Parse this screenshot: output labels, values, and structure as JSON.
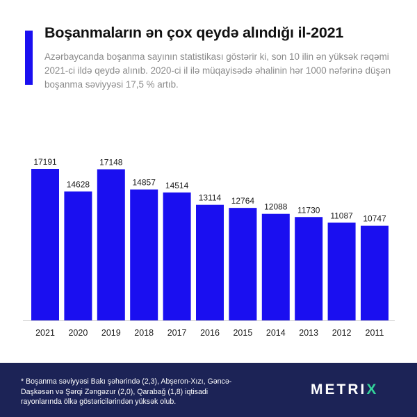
{
  "header": {
    "title": "Boşanmaların ən çox qeydə alındığı il-2021",
    "subtitle": "Azərbaycanda boşanma sayının statistikası göstərir ki, son 10 ilin ən yüksək rəqəmi 2021-ci ildə qeydə alınıb. 2020-ci il ilə müqayisədə əhalinin hər 1000 nəfərinə düşən boşanma səviyyəsi 17,5 % artıb."
  },
  "chart_data": {
    "type": "bar",
    "categories": [
      "2021",
      "2020",
      "2019",
      "2018",
      "2017",
      "2016",
      "2015",
      "2014",
      "2013",
      "2012",
      "2011"
    ],
    "values": [
      17191,
      14628,
      17148,
      14857,
      14514,
      13114,
      12764,
      12088,
      11730,
      11087,
      10747
    ],
    "title": "Boşanmaların ən çox qeydə alındığı il-2021",
    "xlabel": "",
    "ylabel": "",
    "ylim": [
      0,
      17191
    ],
    "grid": false,
    "legend": "none",
    "bar_color": "#1a0ff0"
  },
  "footer": {
    "footnote": "* Boşanma səviyyəsi Bakı şəhərində (2,3), Abşeron-Xızı, Gəncə-Daşkəsən və Şərqi Zəngəzur (2,0), Qarabağ (1,8) iqtisadi rayonlarında ölkə göstəricilərindən yüksək olub.",
    "logo_left": "METRI",
    "logo_x": "X",
    "background": "#1c2356",
    "logo_accent": "#33d39a"
  }
}
